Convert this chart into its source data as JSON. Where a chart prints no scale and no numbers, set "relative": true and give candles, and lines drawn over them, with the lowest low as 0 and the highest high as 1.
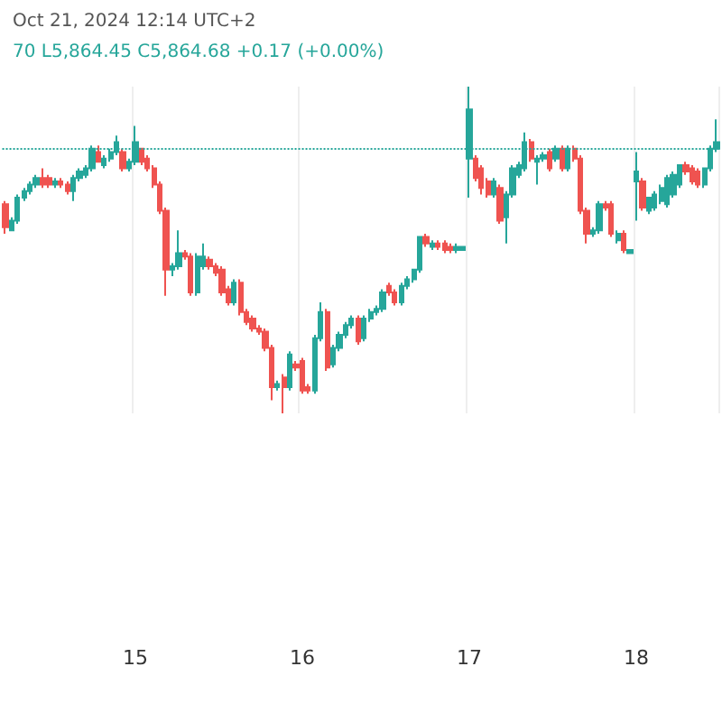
{
  "chart_data": {
    "type": "candlestick",
    "relative": true,
    "title": "Oct 21, 2024 12:14 UTC+2",
    "subtitle": "70 L5,864.45 C5,864.68 +0.17 (+0.00%)",
    "categories": [
      null,
      null,
      null,
      null,
      null,
      null,
      null,
      null,
      null,
      null,
      null,
      null,
      null,
      null,
      null,
      null,
      null,
      null,
      null,
      null,
      null,
      "15",
      null,
      null,
      null,
      null,
      null,
      null,
      null,
      null,
      null,
      null,
      null,
      null,
      null,
      null,
      null,
      null,
      null,
      null,
      null,
      null,
      null,
      null,
      null,
      null,
      null,
      null,
      "16",
      null,
      null,
      null,
      null,
      null,
      null,
      null,
      null,
      null,
      null,
      null,
      null,
      null,
      null,
      null,
      null,
      null,
      null,
      null,
      null,
      null,
      null,
      null,
      null,
      null,
      null,
      "17",
      null,
      null,
      null,
      null,
      null,
      null,
      null,
      null,
      null,
      null,
      null,
      null,
      null,
      null,
      null,
      null,
      null,
      null,
      null,
      null,
      null,
      null,
      null,
      null,
      null,
      null,
      "18",
      null,
      null,
      null,
      null,
      null,
      null,
      null,
      null,
      null,
      null,
      null,
      null,
      null
    ],
    "ohlc": [
      [
        0.64,
        0.65,
        0.55,
        0.57
      ],
      [
        0.56,
        0.6,
        0.56,
        0.59
      ],
      [
        0.59,
        0.67,
        0.58,
        0.66
      ],
      [
        0.66,
        0.69,
        0.65,
        0.68
      ],
      [
        0.68,
        0.71,
        0.67,
        0.7
      ],
      [
        0.7,
        0.73,
        0.69,
        0.72
      ],
      [
        0.72,
        0.75,
        0.69,
        0.7
      ],
      [
        0.72,
        0.73,
        0.69,
        0.7
      ],
      [
        0.7,
        0.72,
        0.69,
        0.71
      ],
      [
        0.71,
        0.72,
        0.69,
        0.7
      ],
      [
        0.7,
        0.71,
        0.67,
        0.68
      ],
      [
        0.68,
        0.73,
        0.65,
        0.72
      ],
      [
        0.72,
        0.75,
        0.71,
        0.74
      ],
      [
        0.73,
        0.76,
        0.72,
        0.75
      ],
      [
        0.75,
        0.82,
        0.74,
        0.81
      ],
      [
        0.8,
        0.82,
        0.77,
        0.77
      ],
      [
        0.76,
        0.79,
        0.75,
        0.78
      ],
      [
        0.78,
        0.81,
        0.77,
        0.8
      ],
      [
        0.8,
        0.85,
        0.79,
        0.83
      ],
      [
        0.8,
        0.81,
        0.74,
        0.75
      ],
      [
        0.75,
        0.78,
        0.74,
        0.77
      ],
      [
        0.77,
        0.88,
        0.76,
        0.83
      ],
      [
        0.81,
        0.81,
        0.76,
        0.77
      ],
      [
        0.78,
        0.79,
        0.74,
        0.75
      ],
      [
        0.75,
        0.76,
        0.69,
        0.7
      ],
      [
        0.7,
        0.71,
        0.61,
        0.62
      ],
      [
        0.62,
        0.63,
        0.36,
        0.44
      ],
      [
        0.44,
        0.46,
        0.42,
        0.45
      ],
      [
        0.45,
        0.56,
        0.44,
        0.49
      ],
      [
        0.49,
        0.5,
        0.47,
        0.48
      ],
      [
        0.48,
        0.49,
        0.36,
        0.37
      ],
      [
        0.37,
        0.49,
        0.36,
        0.48
      ],
      [
        0.45,
        0.52,
        0.44,
        0.48
      ],
      [
        0.47,
        0.48,
        0.44,
        0.45
      ],
      [
        0.45,
        0.46,
        0.42,
        0.43
      ],
      [
        0.44,
        0.45,
        0.36,
        0.37
      ],
      [
        0.38,
        0.39,
        0.33,
        0.34
      ],
      [
        0.34,
        0.41,
        0.33,
        0.4
      ],
      [
        0.4,
        0.41,
        0.3,
        0.31
      ],
      [
        0.31,
        0.32,
        0.27,
        0.28
      ],
      [
        0.29,
        0.3,
        0.25,
        0.26
      ],
      [
        0.26,
        0.27,
        0.24,
        0.25
      ],
      [
        0.25,
        0.26,
        0.19,
        0.2
      ],
      [
        0.2,
        0.21,
        0.04,
        0.08
      ],
      [
        0.08,
        0.1,
        0.07,
        0.09
      ],
      [
        0.11,
        0.12,
        0.0,
        0.08
      ],
      [
        0.08,
        0.19,
        0.07,
        0.18
      ],
      [
        0.15,
        0.16,
        0.13,
        0.14
      ],
      [
        0.16,
        0.17,
        0.06,
        0.07
      ],
      [
        0.08,
        0.09,
        0.06,
        0.07
      ],
      [
        0.07,
        0.24,
        0.06,
        0.23
      ],
      [
        0.23,
        0.34,
        0.22,
        0.31
      ],
      [
        0.31,
        0.32,
        0.13,
        0.14
      ],
      [
        0.15,
        0.21,
        0.14,
        0.2
      ],
      [
        0.2,
        0.25,
        0.19,
        0.24
      ],
      [
        0.24,
        0.28,
        0.23,
        0.27
      ],
      [
        0.27,
        0.3,
        0.26,
        0.29
      ],
      [
        0.29,
        0.3,
        0.21,
        0.22
      ],
      [
        0.23,
        0.3,
        0.22,
        0.29
      ],
      [
        0.29,
        0.32,
        0.28,
        0.31
      ],
      [
        0.31,
        0.33,
        0.3,
        0.32
      ],
      [
        0.32,
        0.38,
        0.31,
        0.37
      ],
      [
        0.39,
        0.4,
        0.36,
        0.37
      ],
      [
        0.37,
        0.38,
        0.33,
        0.34
      ],
      [
        0.34,
        0.4,
        0.33,
        0.39
      ],
      [
        0.39,
        0.42,
        0.38,
        0.41
      ],
      [
        0.41,
        0.44,
        0.4,
        0.44
      ],
      [
        0.44,
        0.54,
        0.43,
        0.54
      ],
      [
        0.54,
        0.55,
        0.51,
        0.52
      ],
      [
        0.51,
        0.53,
        0.5,
        0.52
      ],
      [
        0.52,
        0.53,
        0.5,
        0.51
      ],
      [
        0.52,
        0.53,
        0.49,
        0.5
      ],
      [
        0.51,
        0.52,
        0.49,
        0.5
      ],
      [
        0.5,
        0.52,
        0.49,
        0.51
      ],
      [
        0.5,
        0.51,
        0.5,
        0.51
      ],
      [
        0.78,
        1.0,
        0.66,
        0.93
      ],
      [
        0.78,
        0.79,
        0.71,
        0.72
      ],
      [
        0.75,
        0.76,
        0.67,
        0.69
      ],
      [
        0.71,
        0.72,
        0.66,
        0.67
      ],
      [
        0.67,
        0.72,
        0.66,
        0.71
      ],
      [
        0.69,
        0.7,
        0.58,
        0.59
      ],
      [
        0.6,
        0.68,
        0.52,
        0.67
      ],
      [
        0.67,
        0.76,
        0.66,
        0.75
      ],
      [
        0.73,
        0.77,
        0.72,
        0.76
      ],
      [
        0.75,
        0.86,
        0.74,
        0.83
      ],
      [
        0.83,
        0.84,
        0.77,
        0.78
      ],
      [
        0.77,
        0.79,
        0.7,
        0.78
      ],
      [
        0.78,
        0.8,
        0.77,
        0.79
      ],
      [
        0.8,
        0.81,
        0.74,
        0.75
      ],
      [
        0.78,
        0.82,
        0.77,
        0.81
      ],
      [
        0.81,
        0.82,
        0.74,
        0.75
      ],
      [
        0.75,
        0.82,
        0.74,
        0.81
      ],
      [
        0.81,
        0.82,
        0.77,
        0.78
      ],
      [
        0.78,
        0.79,
        0.61,
        0.62
      ],
      [
        0.62,
        0.63,
        0.52,
        0.55
      ],
      [
        0.55,
        0.57,
        0.54,
        0.56
      ],
      [
        0.56,
        0.65,
        0.55,
        0.64
      ],
      [
        0.64,
        0.65,
        0.62,
        0.63
      ],
      [
        0.64,
        0.65,
        0.54,
        0.55
      ],
      [
        0.53,
        0.56,
        0.52,
        0.55
      ],
      [
        0.55,
        0.56,
        0.49,
        0.5
      ],
      [
        0.49,
        0.5,
        0.49,
        0.5
      ],
      [
        0.71,
        0.8,
        0.59,
        0.74
      ],
      [
        0.71,
        0.72,
        0.62,
        0.63
      ],
      [
        0.62,
        0.66,
        0.61,
        0.66
      ],
      [
        0.63,
        0.68,
        0.62,
        0.67
      ],
      [
        0.65,
        0.7,
        0.64,
        0.69
      ],
      [
        0.64,
        0.73,
        0.63,
        0.72
      ],
      [
        0.67,
        0.74,
        0.66,
        0.73
      ],
      [
        0.7,
        0.76,
        0.69,
        0.76
      ],
      [
        0.76,
        0.77,
        0.73,
        0.74
      ],
      [
        0.75,
        0.76,
        0.7,
        0.71
      ],
      [
        0.74,
        0.75,
        0.69,
        0.7
      ],
      [
        0.7,
        0.75,
        0.69,
        0.75
      ],
      [
        0.75,
        0.82,
        0.74,
        0.81
      ],
      [
        0.81,
        0.9,
        0.8,
        0.83
      ]
    ],
    "colors": [
      "#ef5350",
      "#26a69a",
      "#26a69a",
      "#26a69a",
      "#26a69a",
      "#26a69a",
      "#ef5350",
      "#ef5350",
      "#26a69a",
      "#ef5350",
      "#ef5350",
      "#26a69a",
      "#26a69a",
      "#26a69a",
      "#26a69a",
      "#ef5350",
      "#26a69a",
      "#26a69a",
      "#26a69a",
      "#ef5350",
      "#26a69a",
      "#26a69a",
      "#ef5350",
      "#ef5350",
      "#ef5350",
      "#ef5350",
      "#ef5350",
      "#26a69a",
      "#26a69a",
      "#ef5350",
      "#ef5350",
      "#26a69a",
      "#26a69a",
      "#ef5350",
      "#ef5350",
      "#ef5350",
      "#ef5350",
      "#26a69a",
      "#ef5350",
      "#ef5350",
      "#ef5350",
      "#ef5350",
      "#ef5350",
      "#ef5350",
      "#26a69a",
      "#ef5350",
      "#26a69a",
      "#ef5350",
      "#ef5350",
      "#ef5350",
      "#26a69a",
      "#26a69a",
      "#ef5350",
      "#26a69a",
      "#26a69a",
      "#26a69a",
      "#26a69a",
      "#ef5350",
      "#26a69a",
      "#26a69a",
      "#26a69a",
      "#26a69a",
      "#ef5350",
      "#ef5350",
      "#26a69a",
      "#26a69a",
      "#26a69a",
      "#26a69a",
      "#ef5350",
      "#26a69a",
      "#ef5350",
      "#ef5350",
      "#ef5350",
      "#26a69a",
      "#26a69a",
      "#26a69a",
      "#ef5350",
      "#ef5350",
      "#ef5350",
      "#26a69a",
      "#ef5350",
      "#26a69a",
      "#26a69a",
      "#26a69a",
      "#26a69a",
      "#ef5350",
      "#26a69a",
      "#26a69a",
      "#ef5350",
      "#26a69a",
      "#ef5350",
      "#26a69a",
      "#ef5350",
      "#ef5350",
      "#ef5350",
      "#26a69a",
      "#26a69a",
      "#ef5350",
      "#ef5350",
      "#26a69a",
      "#ef5350",
      "#26a69a",
      "#26a69a",
      "#ef5350",
      "#26a69a",
      "#26a69a",
      "#26a69a",
      "#26a69a",
      "#26a69a",
      "#26a69a",
      "#ef5350",
      "#ef5350",
      "#ef5350",
      "#26a69a",
      "#26a69a",
      "#26a69a"
    ],
    "ref_lines": [
      {
        "axis": "y",
        "value": 0.81,
        "color": "#26a69a",
        "line_style": "dotted"
      }
    ],
    "grid": "x"
  }
}
